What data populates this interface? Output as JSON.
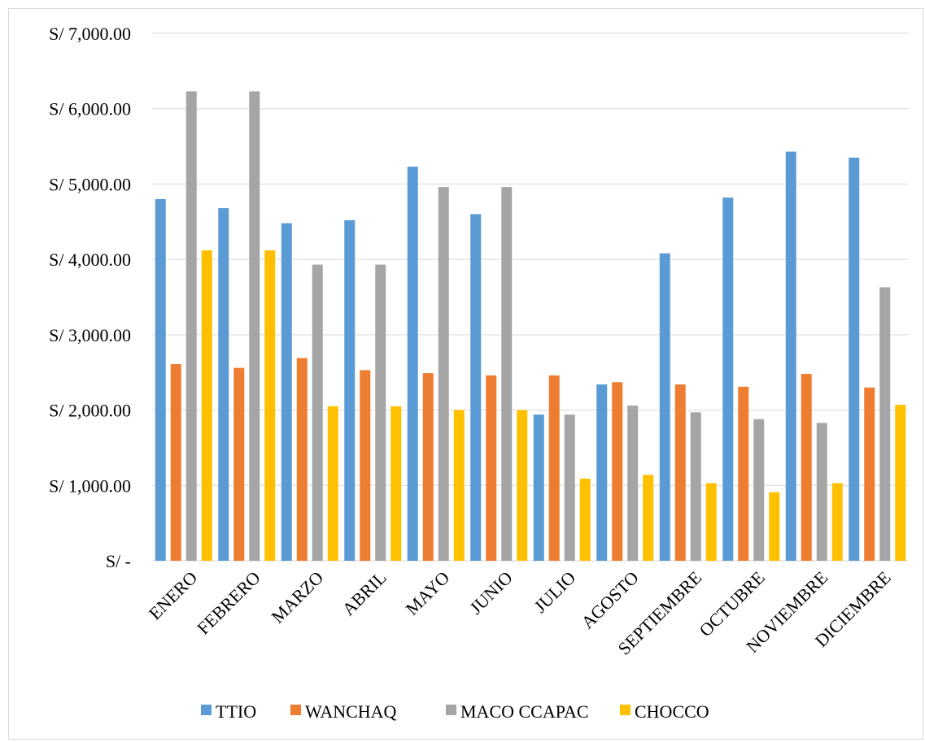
{
  "chart_data": {
    "type": "bar",
    "title": "",
    "xlabel": "",
    "ylabel": "",
    "ylim": [
      0,
      7000
    ],
    "yticks": [
      {
        "value": 0,
        "label": "S/ -"
      },
      {
        "value": 1000,
        "label": "S/ 1,000.00"
      },
      {
        "value": 2000,
        "label": "S/ 2,000.00"
      },
      {
        "value": 3000,
        "label": "S/ 3,000.00"
      },
      {
        "value": 4000,
        "label": "S/ 4,000.00"
      },
      {
        "value": 5000,
        "label": "S/ 5,000.00"
      },
      {
        "value": 6000,
        "label": "S/ 6,000.00"
      },
      {
        "value": 7000,
        "label": "S/ 7,000.00"
      }
    ],
    "grid": true,
    "legend_position": "bottom",
    "categories": [
      "ENERO",
      "FEBRERO",
      "MARZO",
      "ABRIL",
      "MAYO",
      "JUNIO",
      "JULIO",
      "AGOSTO",
      "SEPTIEMBRE",
      "OCTUBRE",
      "NOVIEMBRE",
      "DICIEMBRE"
    ],
    "series": [
      {
        "name": "TTIO",
        "color": "#5b9bd5",
        "values": [
          4800,
          4680,
          4480,
          4520,
          5230,
          4600,
          1940,
          2340,
          4080,
          4820,
          5430,
          5350
        ]
      },
      {
        "name": "WANCHAQ",
        "color": "#ed7d31",
        "values": [
          2610,
          2560,
          2690,
          2530,
          2490,
          2460,
          2460,
          2370,
          2340,
          2310,
          2480,
          2300
        ]
      },
      {
        "name": "MACO CCAPAC",
        "color": "#a5a5a5",
        "values": [
          6230,
          6230,
          3930,
          3930,
          4960,
          4960,
          1940,
          2060,
          1970,
          1880,
          1830,
          3630
        ]
      },
      {
        "name": "CHOCCO",
        "color": "#ffc000",
        "values": [
          4120,
          4120,
          2050,
          2050,
          2000,
          2000,
          1090,
          1140,
          1030,
          910,
          1030,
          2070
        ]
      }
    ]
  }
}
